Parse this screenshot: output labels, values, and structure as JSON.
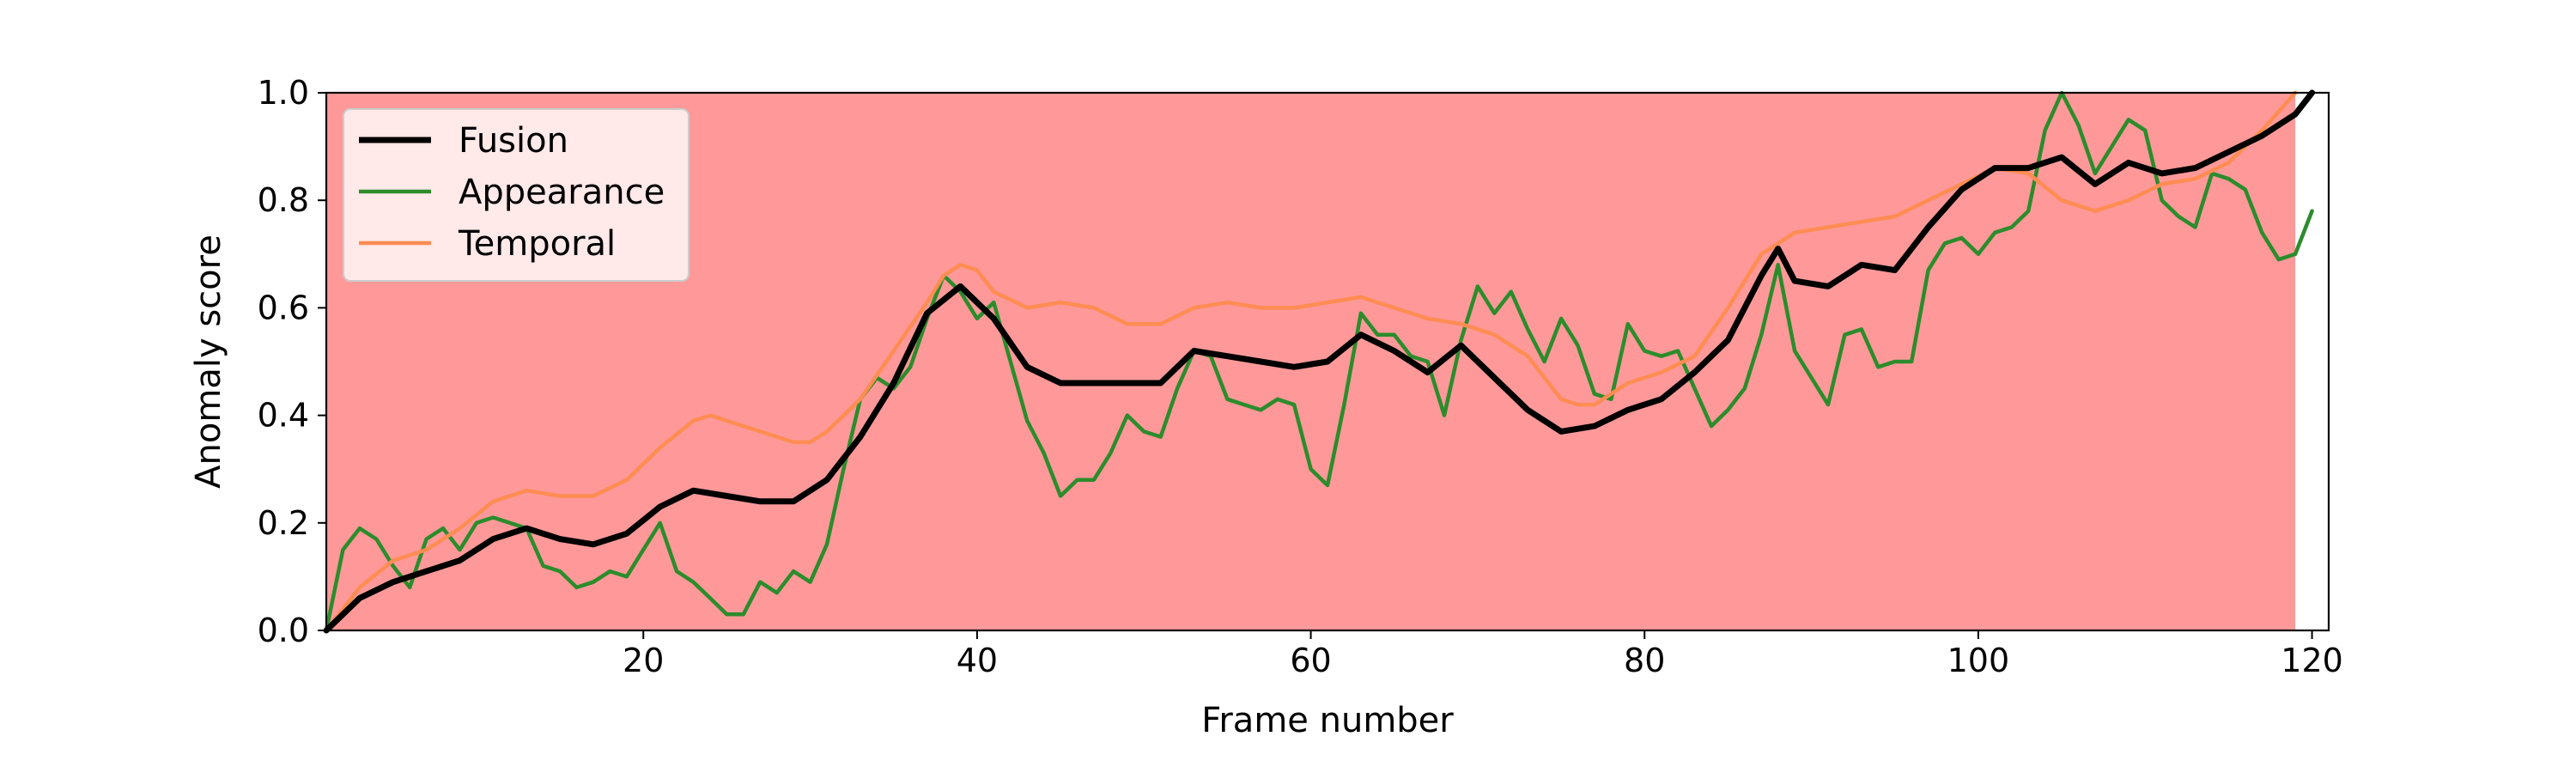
{
  "chart_data": {
    "type": "line",
    "title": "",
    "xlabel": "Frame number",
    "ylabel": "Anomaly score",
    "xlim": [
      1,
      121
    ],
    "ylim": [
      0,
      1
    ],
    "xticks": [
      20,
      40,
      60,
      80,
      100,
      120
    ],
    "yticks": [
      0.0,
      0.2,
      0.4,
      0.6,
      0.8,
      1.0
    ],
    "ytick_labels": [
      "0.0",
      "0.2",
      "0.4",
      "0.6",
      "0.8",
      "1.0"
    ],
    "grid": false,
    "legend_position": "upper-left",
    "background_highlight": {
      "x_start": 1,
      "x_end": 119,
      "color": "#ff9999"
    },
    "series": [
      {
        "name": "Fusion",
        "color": "#000000",
        "x": [
          1,
          3,
          5,
          7,
          9,
          11,
          13,
          15,
          17,
          19,
          21,
          23,
          25,
          27,
          29,
          31,
          33,
          35,
          37,
          39,
          41,
          43,
          45,
          47,
          49,
          51,
          53,
          55,
          57,
          59,
          61,
          63,
          65,
          67,
          69,
          71,
          73,
          75,
          77,
          79,
          81,
          83,
          85,
          87,
          88,
          89,
          91,
          93,
          95,
          97,
          99,
          101,
          103,
          105,
          107,
          109,
          111,
          113,
          115,
          117,
          119,
          120
        ],
        "y": [
          0.0,
          0.06,
          0.09,
          0.11,
          0.13,
          0.17,
          0.19,
          0.17,
          0.16,
          0.18,
          0.23,
          0.26,
          0.25,
          0.24,
          0.24,
          0.28,
          0.36,
          0.46,
          0.59,
          0.64,
          0.58,
          0.49,
          0.46,
          0.46,
          0.46,
          0.46,
          0.52,
          0.51,
          0.5,
          0.49,
          0.5,
          0.55,
          0.52,
          0.48,
          0.53,
          0.47,
          0.41,
          0.37,
          0.38,
          0.41,
          0.43,
          0.48,
          0.54,
          0.66,
          0.71,
          0.65,
          0.64,
          0.68,
          0.67,
          0.75,
          0.82,
          0.86,
          0.86,
          0.88,
          0.83,
          0.87,
          0.85,
          0.86,
          0.89,
          0.92,
          0.96,
          1.0
        ]
      },
      {
        "name": "Appearance",
        "color": "#2c8c2c",
        "x": [
          1,
          2,
          3,
          4,
          5,
          6,
          7,
          8,
          9,
          10,
          11,
          12,
          13,
          14,
          15,
          16,
          17,
          18,
          19,
          20,
          21,
          22,
          23,
          24,
          25,
          26,
          27,
          28,
          29,
          30,
          31,
          32,
          33,
          34,
          35,
          36,
          37,
          38,
          39,
          40,
          41,
          42,
          43,
          44,
          45,
          46,
          47,
          48,
          49,
          50,
          51,
          52,
          53,
          54,
          55,
          56,
          57,
          58,
          59,
          60,
          61,
          62,
          63,
          64,
          65,
          66,
          67,
          68,
          69,
          70,
          71,
          72,
          73,
          74,
          75,
          76,
          77,
          78,
          79,
          80,
          81,
          82,
          83,
          84,
          85,
          86,
          87,
          88,
          89,
          90,
          91,
          92,
          93,
          94,
          95,
          96,
          97,
          98,
          99,
          100,
          101,
          102,
          103,
          104,
          105,
          106,
          107,
          108,
          109,
          110,
          111,
          112,
          113,
          114,
          115,
          116,
          117,
          118,
          119,
          120
        ],
        "y": [
          0.0,
          0.15,
          0.19,
          0.17,
          0.12,
          0.08,
          0.17,
          0.19,
          0.15,
          0.2,
          0.21,
          0.2,
          0.19,
          0.12,
          0.11,
          0.08,
          0.09,
          0.11,
          0.1,
          0.15,
          0.2,
          0.11,
          0.09,
          0.06,
          0.03,
          0.03,
          0.09,
          0.07,
          0.11,
          0.09,
          0.16,
          0.3,
          0.43,
          0.47,
          0.45,
          0.49,
          0.58,
          0.66,
          0.63,
          0.58,
          0.61,
          0.5,
          0.39,
          0.33,
          0.25,
          0.28,
          0.28,
          0.33,
          0.4,
          0.37,
          0.36,
          0.45,
          0.52,
          0.51,
          0.43,
          0.42,
          0.41,
          0.43,
          0.42,
          0.3,
          0.27,
          0.42,
          0.59,
          0.55,
          0.55,
          0.51,
          0.5,
          0.4,
          0.54,
          0.64,
          0.59,
          0.63,
          0.56,
          0.5,
          0.58,
          0.53,
          0.44,
          0.43,
          0.57,
          0.52,
          0.51,
          0.52,
          0.45,
          0.38,
          0.41,
          0.45,
          0.55,
          0.68,
          0.52,
          0.47,
          0.42,
          0.55,
          0.56,
          0.49,
          0.5,
          0.5,
          0.67,
          0.72,
          0.73,
          0.7,
          0.74,
          0.75,
          0.78,
          0.93,
          1.0,
          0.94,
          0.85,
          0.9,
          0.95,
          0.93,
          0.8,
          0.77,
          0.75,
          0.85,
          0.84,
          0.82,
          0.74,
          0.69,
          0.7,
          0.78
        ]
      },
      {
        "name": "Temporal",
        "color": "#ff8c52",
        "x": [
          1,
          3,
          5,
          7,
          9,
          11,
          13,
          15,
          17,
          19,
          21,
          23,
          24,
          25,
          27,
          29,
          30,
          31,
          33,
          35,
          37,
          38,
          39,
          40,
          41,
          43,
          45,
          47,
          49,
          51,
          53,
          55,
          57,
          59,
          61,
          63,
          65,
          67,
          69,
          71,
          73,
          75,
          76,
          77,
          79,
          81,
          83,
          85,
          87,
          89,
          91,
          93,
          95,
          97,
          99,
          101,
          103,
          105,
          107,
          109,
          111,
          113,
          115,
          117,
          119
        ],
        "y": [
          0.0,
          0.08,
          0.13,
          0.15,
          0.19,
          0.24,
          0.26,
          0.25,
          0.25,
          0.28,
          0.34,
          0.39,
          0.4,
          0.39,
          0.37,
          0.35,
          0.35,
          0.37,
          0.43,
          0.52,
          0.61,
          0.66,
          0.68,
          0.67,
          0.63,
          0.6,
          0.61,
          0.6,
          0.57,
          0.57,
          0.6,
          0.61,
          0.6,
          0.6,
          0.61,
          0.62,
          0.6,
          0.58,
          0.57,
          0.55,
          0.51,
          0.43,
          0.42,
          0.42,
          0.46,
          0.48,
          0.51,
          0.6,
          0.7,
          0.74,
          0.75,
          0.76,
          0.77,
          0.8,
          0.83,
          0.86,
          0.85,
          0.8,
          0.78,
          0.8,
          0.83,
          0.84,
          0.87,
          0.93,
          1.0
        ]
      }
    ]
  }
}
